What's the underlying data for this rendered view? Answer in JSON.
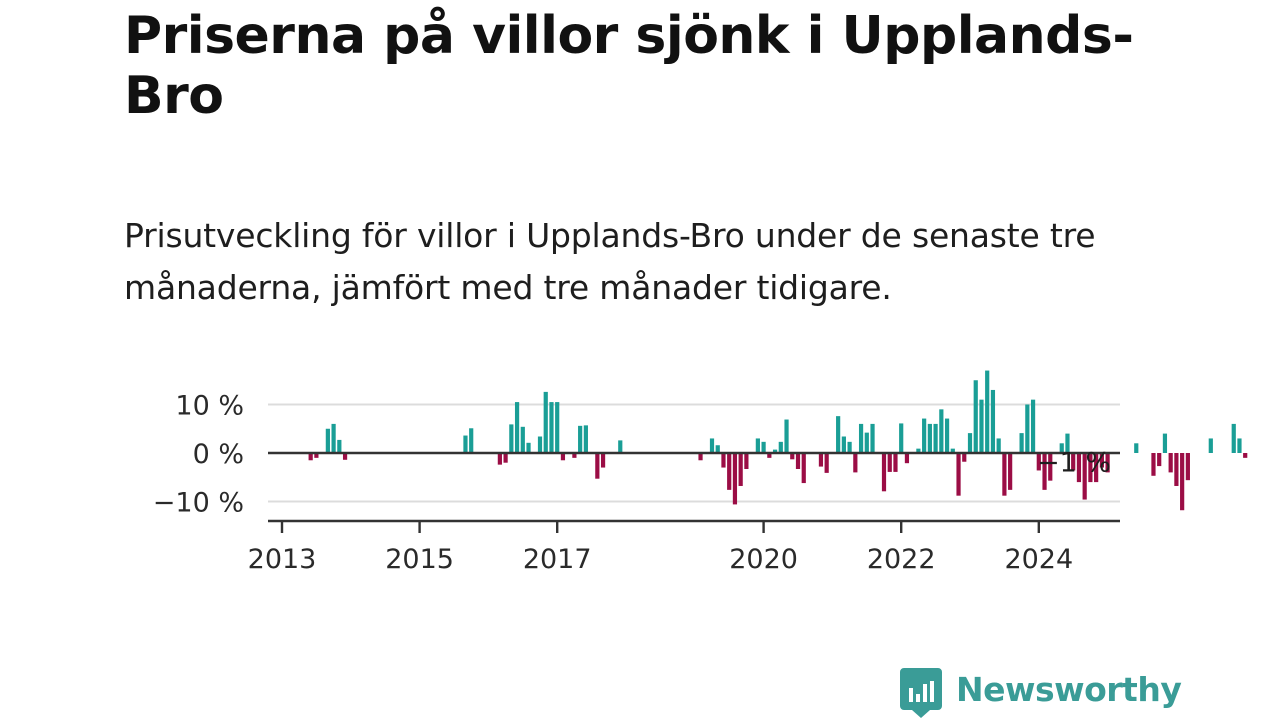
{
  "title": "Priserna på villor sjönk i Upplands-Bro",
  "subtitle": "Prisutveckling för villor i Upplands-Bro under de senaste tre månaderna, jämfört med tre månader tidigare.",
  "brand": {
    "name": "Newsworthy",
    "icon": "newsworthy-logo-icon",
    "color": "#3a9c97"
  },
  "chart_data": {
    "type": "bar",
    "ylabel": "",
    "xlabel": "",
    "ylim": [
      -14,
      18
    ],
    "yticks": [
      {
        "value": 10,
        "label": "10 %"
      },
      {
        "value": 0,
        "label": "0 %"
      },
      {
        "value": -10,
        "label": "−10 %"
      }
    ],
    "xticks": [
      {
        "value": 2013,
        "label": "2013"
      },
      {
        "value": 2015,
        "label": "2015"
      },
      {
        "value": 2017,
        "label": "2017"
      },
      {
        "value": 2020,
        "label": "2020"
      },
      {
        "value": 2022,
        "label": "2022"
      },
      {
        "value": 2024,
        "label": "2024"
      }
    ],
    "xlim": [
      2013,
      2025.22
    ],
    "colors": {
      "positive": "#1a9e96",
      "negative": "#9b0d45"
    },
    "last_value_label": "−1 %",
    "series": [
      {
        "name": "Prisutveckling",
        "x_start": 2013.4167,
        "x_step": 0.0833333,
        "values": [
          -1.5,
          -1.0,
          0,
          5.0,
          6.0,
          2.7,
          -1.4,
          0,
          0,
          0,
          0,
          0,
          0,
          0,
          0,
          0,
          0,
          0,
          0,
          0,
          0,
          0,
          0,
          0,
          0,
          0,
          0,
          3.6,
          5.1,
          0,
          0,
          0,
          0,
          -2.4,
          -2.0,
          5.9,
          10.5,
          5.4,
          2.1,
          0,
          3.4,
          12.6,
          10.5,
          10.5,
          -1.5,
          0,
          -1.0,
          5.6,
          5.7,
          0,
          -5.3,
          -3.0,
          0,
          0,
          2.6,
          0,
          0,
          0,
          0,
          0,
          0,
          0,
          0,
          0,
          0,
          0,
          0,
          0,
          -1.5,
          0,
          3.0,
          1.6,
          -3.0,
          -7.6,
          -10.6,
          -6.8,
          -3.3,
          0,
          3.0,
          2.3,
          -1.0,
          0.7,
          2.3,
          6.9,
          -1.3,
          -3.3,
          -6.2,
          0,
          0,
          -2.8,
          -4.1,
          0,
          7.6,
          3.4,
          2.3,
          -4.0,
          6.0,
          4.2,
          6.0,
          0,
          -7.9,
          -3.9,
          -3.9,
          6.1,
          -2.1,
          0,
          0.9,
          7.1,
          6.0,
          6.0,
          9.0,
          7.1,
          0.9,
          -8.8,
          -1.8,
          4.1,
          15.0,
          11.0,
          17.0,
          13.0,
          3.0,
          -8.8,
          -7.6,
          0,
          4.1,
          10.0,
          11.0,
          -3.6,
          -7.6,
          -5.7,
          0,
          2.0,
          4.0,
          -3.6,
          -6.0,
          -9.6,
          -6.0,
          -6.0,
          -3.0,
          -4.0,
          0,
          0,
          0,
          0,
          2.0,
          0,
          0,
          -4.7,
          -2.7,
          4.0,
          -4.0,
          -6.8,
          -11.8,
          -5.6,
          0,
          0,
          0,
          3.0,
          0,
          0,
          0,
          6.0,
          3.0,
          -1.0
        ]
      }
    ]
  }
}
